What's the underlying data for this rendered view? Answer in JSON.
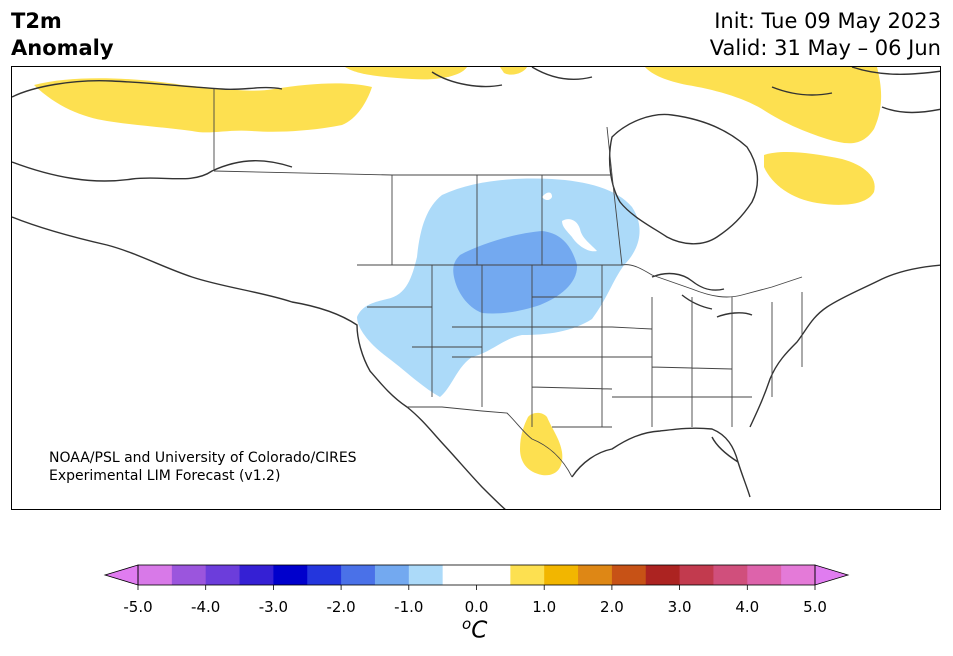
{
  "title": {
    "line1": "T2m",
    "line2": "Anomaly"
  },
  "dates": {
    "init": "Init: Tue 09 May 2023",
    "valid": "Valid: 31 May – 06 Jun"
  },
  "credit": {
    "line1": "NOAA/PSL and University of Colorado/CIRES",
    "line2": "Experimental LIM Forecast (v1.2)"
  },
  "colorbar": {
    "unit_sup": "o",
    "unit": "C",
    "ticks": [
      "-5.0",
      "-4.0",
      "-3.0",
      "-2.0",
      "-1.0",
      "0.0",
      "1.0",
      "2.0",
      "3.0",
      "4.0",
      "5.0"
    ],
    "colors": [
      "#d879e8",
      "#9b55dd",
      "#6c3ddb",
      "#3520d4",
      "#0000cc",
      "#2436dd",
      "#4a71e8",
      "#73a9f0",
      "#acdaf9",
      "#ffffff",
      "#ffffff",
      "#fde050",
      "#f2b600",
      "#de8715",
      "#c75216",
      "#ac2321",
      "#c23a4e",
      "#d04f7c",
      "#dd63ab",
      "#e47ad8"
    ],
    "under_color": "#e07cf0",
    "over_color": "#e07cf0"
  },
  "legend_colors": {
    "warm_1": "#fde050",
    "cool_1": "#acdaf9",
    "cool_2": "#73a9f0"
  }
}
